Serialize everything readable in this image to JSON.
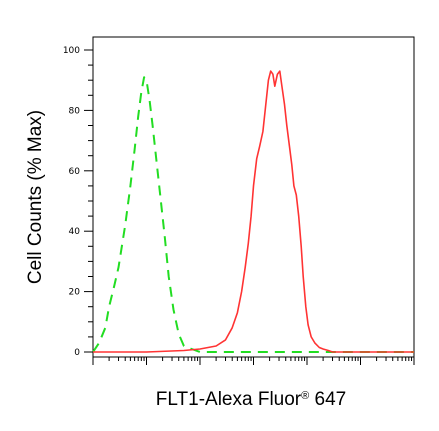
{
  "chart_data": {
    "type": "line",
    "title": "",
    "xlabel": "FLT1-Alexa Fluor",
    "xlabel_sup": "®",
    "xlabel_suffix": " 647",
    "ylabel": "Cell Counts (% Max)",
    "x_scale": "log",
    "xlim": [
      0.1,
      100000
    ],
    "ylim": [
      0,
      100
    ],
    "y_ticks": [
      0,
      20,
      40,
      60,
      80,
      100
    ],
    "y_tick_labels": [
      "0",
      "20",
      "40",
      "60",
      "80",
      "100"
    ],
    "grid": false,
    "legend": "none",
    "series": [
      {
        "style": "dashed",
        "color": "#22dd22",
        "x": [
          0.1,
          0.13,
          0.17,
          0.2,
          0.25,
          0.3,
          0.4,
          0.5,
          0.6,
          0.7,
          0.8,
          0.9,
          1.0,
          1.15,
          1.3,
          1.5,
          1.8,
          2.2,
          2.6,
          3.2,
          4.0,
          5.0,
          7.0,
          10,
          30,
          100,
          1000,
          10000,
          100000
        ],
        "y": [
          0,
          3,
          8,
          15,
          22,
          28,
          42,
          55,
          67,
          78,
          86,
          91,
          90,
          83,
          75,
          65,
          52,
          38,
          25,
          14,
          6,
          2,
          1,
          0,
          0,
          0,
          0,
          0,
          0
        ]
      },
      {
        "style": "solid",
        "color": "#ff3333",
        "x": [
          0.1,
          1,
          5,
          10,
          20,
          30,
          40,
          50,
          60,
          70,
          80,
          90,
          100,
          115,
          130,
          150,
          170,
          190,
          210,
          230,
          250,
          280,
          310,
          340,
          380,
          420,
          470,
          520,
          570,
          630,
          700,
          780,
          850,
          950,
          1050,
          1200,
          1400,
          1700,
          2000,
          2500,
          3000,
          5000,
          10000,
          100000
        ],
        "y": [
          0,
          0,
          0.5,
          1,
          2,
          4,
          8,
          13,
          20,
          28,
          36,
          45,
          55,
          64,
          68,
          73,
          82,
          90,
          93,
          92,
          88,
          92,
          93,
          88,
          82,
          75,
          68,
          62,
          55,
          52,
          45,
          35,
          25,
          15,
          9,
          5,
          3,
          1.5,
          1,
          0.5,
          0,
          0,
          0,
          0
        ]
      }
    ]
  }
}
